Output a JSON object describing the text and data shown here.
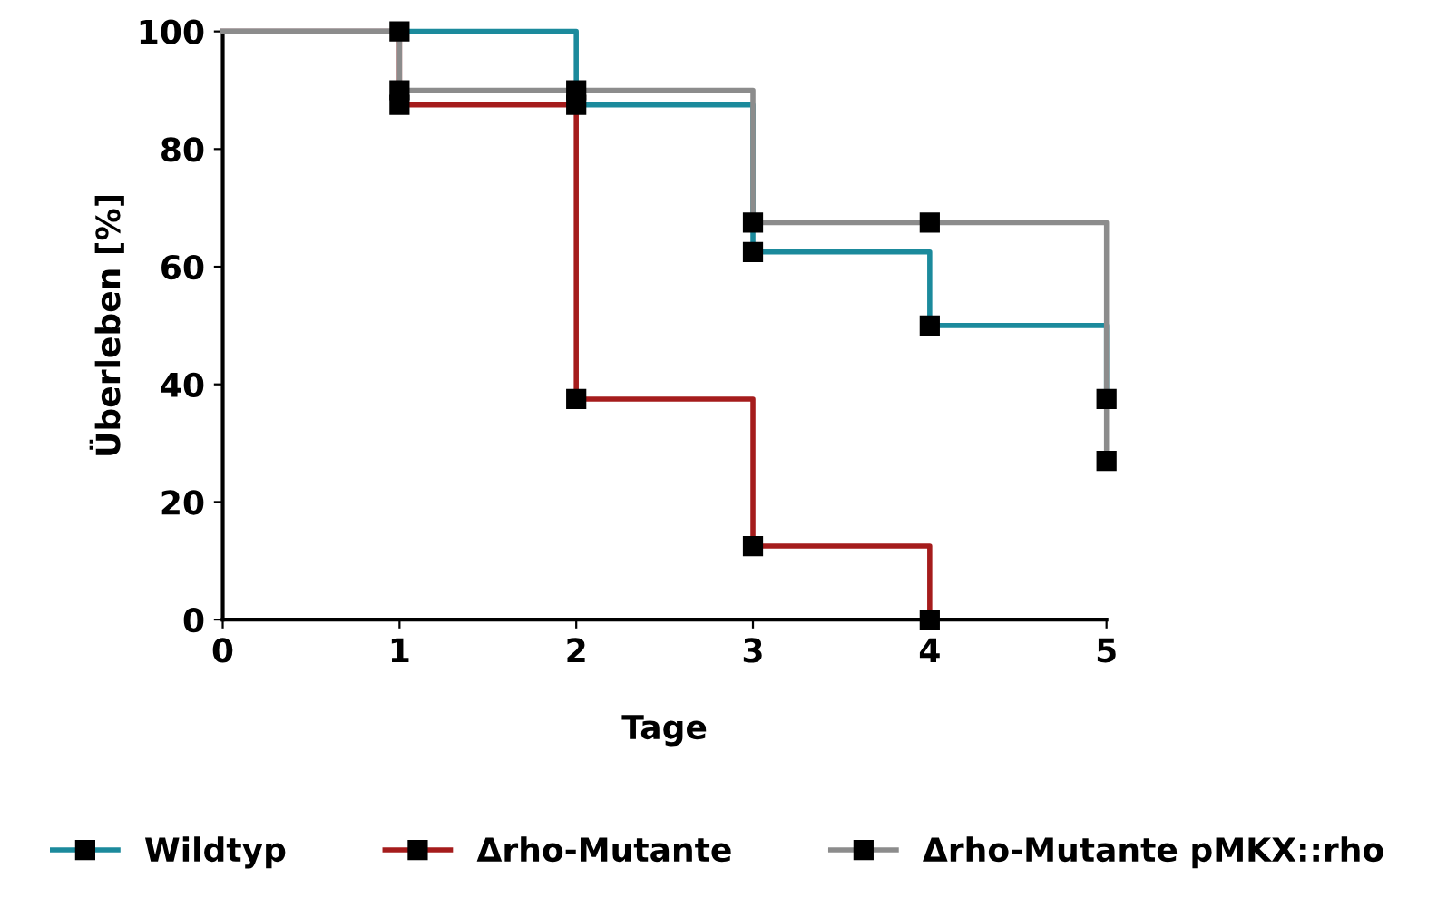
{
  "chart_data": {
    "type": "step",
    "xlabel": "Tage",
    "ylabel": "Überleben [%]",
    "xlim": [
      0,
      5
    ],
    "ylim": [
      0,
      100
    ],
    "xticks": [
      0,
      1,
      2,
      3,
      4,
      5
    ],
    "yticks": [
      0,
      20,
      40,
      60,
      80,
      100
    ],
    "marker": "square",
    "grid": false,
    "legend": "bottom",
    "series": [
      {
        "name": "Wildtyp",
        "color": "#1b8a9c",
        "x": [
          0,
          1,
          2,
          3,
          4,
          5
        ],
        "values": [
          100,
          100,
          87.5,
          62.5,
          50,
          37.5
        ]
      },
      {
        "name": "Δrho-Mutante",
        "color": "#a51c1c",
        "x": [
          0,
          1,
          2,
          3,
          4
        ],
        "values": [
          100,
          87.5,
          37.5,
          12.5,
          0
        ]
      },
      {
        "name": "Δrho-Mutante pMKX::rho",
        "color": "#8c8c8c",
        "x": [
          0,
          1,
          2,
          3,
          4,
          5
        ],
        "values": [
          100,
          90,
          90,
          67.5,
          67.5,
          27
        ]
      }
    ]
  }
}
